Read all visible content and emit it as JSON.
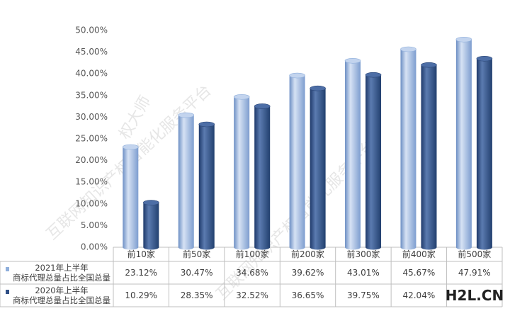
{
  "chart_data": {
    "type": "bar",
    "categories": [
      "前10家",
      "前50家",
      "前100家",
      "前200家",
      "前300家",
      "前400家",
      "前500家"
    ],
    "series": [
      {
        "name": "2021年上半年\n商标代理总量占比全国总量",
        "color": "#8eaedb",
        "values": [
          23.12,
          30.47,
          34.68,
          39.62,
          43.01,
          45.67,
          47.91
        ],
        "value_labels": [
          "23.12%",
          "30.47%",
          "34.68%",
          "39.62%",
          "43.01%",
          "45.67%",
          "47.91%"
        ]
      },
      {
        "name": "2020年上半年\n商标代理总量占比全国总量",
        "color": "#2f4f86",
        "values": [
          10.29,
          28.35,
          32.52,
          36.65,
          39.75,
          42.04,
          43.5
        ],
        "value_labels": [
          "10.29%",
          "28.35%",
          "32.52%",
          "36.65%",
          "39.75%",
          "42.04%",
          null
        ]
      }
    ],
    "ylim": [
      0,
      50
    ],
    "yticks": [
      {
        "value": 0,
        "label": "0.00%"
      },
      {
        "value": 5,
        "label": "5.00%"
      },
      {
        "value": 10,
        "label": "10.00%"
      },
      {
        "value": 15,
        "label": "15.00%"
      },
      {
        "value": 20,
        "label": "20.00%"
      },
      {
        "value": 25,
        "label": "25.00%"
      },
      {
        "value": 30,
        "label": "30.00%"
      },
      {
        "value": 35,
        "label": "35.00%"
      },
      {
        "value": 40,
        "label": "40.00%"
      },
      {
        "value": 45,
        "label": "45.00%"
      },
      {
        "value": 50,
        "label": "50.00%"
      }
    ],
    "grid": false,
    "watermarks": [
      "互联网知识产权智能化服务平台",
      "权大师",
      "互联网知识产权智能化服务平台"
    ],
    "logo": "H2L.CN"
  }
}
